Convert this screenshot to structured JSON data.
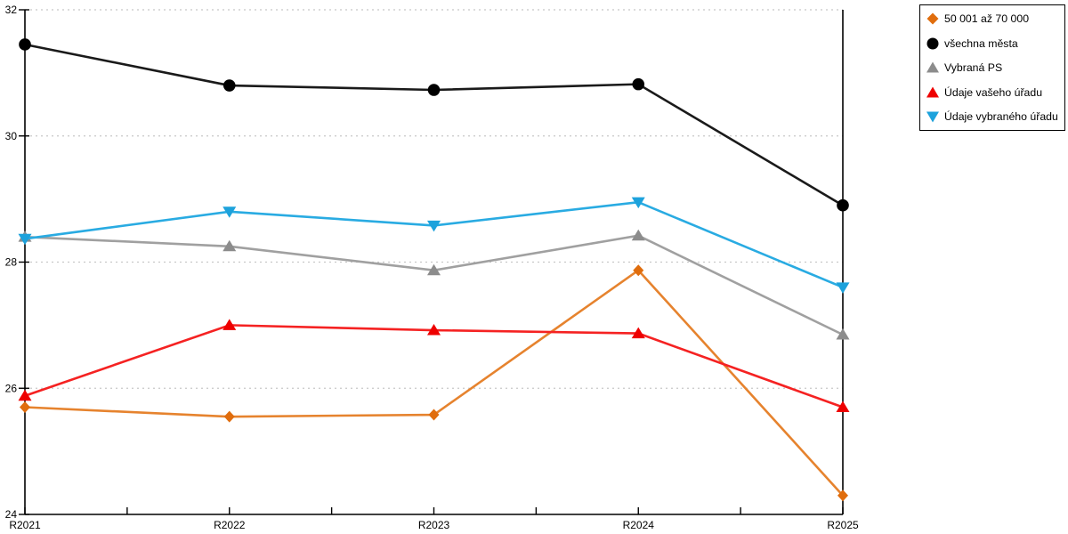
{
  "chart_data": {
    "type": "line",
    "title": "",
    "xlabel": "",
    "ylabel": "",
    "categories": [
      "R2021",
      "R2022",
      "R2023",
      "R2024",
      "R2025"
    ],
    "y_ticks": [
      "24",
      "26",
      "28",
      "30",
      "32"
    ],
    "ylim": [
      24,
      32
    ],
    "grid": "horizontal-dotted",
    "legend_position": "outside-top-right",
    "colors": {
      "grid": "#c8c8c8",
      "axis": "#000000",
      "background": "#ffffff"
    },
    "series": [
      {
        "name": "50 001 až 70 000",
        "marker": "diamond",
        "line_color": "#e6832e",
        "marker_color": "#e06d0d",
        "values": [
          25.7,
          25.55,
          25.58,
          27.87,
          24.3
        ]
      },
      {
        "name": "všechna města",
        "marker": "circle",
        "line_color": "#1a1a1a",
        "marker_color": "#000000",
        "values": [
          31.45,
          30.8,
          30.73,
          30.82,
          28.9
        ]
      },
      {
        "name": "Vybraná PS",
        "marker": "triangle-up",
        "line_color": "#a0a0a0",
        "marker_color": "#8c8c8c",
        "values": [
          28.4,
          28.25,
          27.87,
          28.42,
          26.85
        ]
      },
      {
        "name": "Údaje vašeho úřadu",
        "marker": "triangle-up",
        "line_color": "#f52222",
        "marker_color": "#ee0000",
        "values": [
          25.88,
          27.0,
          26.92,
          26.87,
          25.7
        ]
      },
      {
        "name": "Údaje vybraného úřadu",
        "marker": "triangle-down",
        "line_color": "#29abe2",
        "marker_color": "#1da2dc",
        "values": [
          28.37,
          28.8,
          28.58,
          28.95,
          27.6
        ]
      }
    ]
  }
}
